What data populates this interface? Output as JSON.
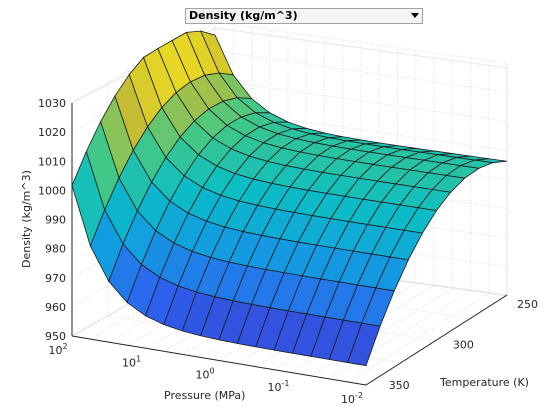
{
  "dropdown": {
    "selected": "Density (kg/m^3)",
    "options": [
      "Density (kg/m^3)"
    ]
  },
  "chart_data": {
    "type": "surface",
    "xlabel": "Pressure (MPa)",
    "ylabel": "Temperature (K)",
    "zlabel": "Density (kg/m^3)",
    "x_scale": "log",
    "x_ticks": [
      "10^2",
      "10^1",
      "10^0",
      "10^-1",
      "10^-2"
    ],
    "y_ticks": [
      "250",
      "300",
      "350"
    ],
    "z_ticks": [
      "950",
      "960",
      "970",
      "980",
      "990",
      "1000",
      "1010",
      "1020",
      "1030"
    ],
    "zlim": [
      950,
      1030
    ],
    "colormap": "parula",
    "grid": true
  }
}
